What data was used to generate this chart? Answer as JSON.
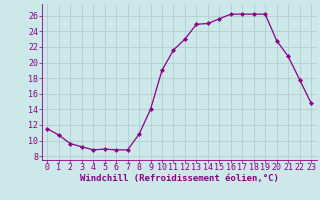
{
  "x": [
    0,
    1,
    2,
    3,
    4,
    5,
    6,
    7,
    8,
    9,
    10,
    11,
    12,
    13,
    14,
    15,
    16,
    17,
    18,
    19,
    20,
    21,
    22,
    23
  ],
  "y": [
    11.5,
    10.7,
    9.6,
    9.2,
    8.8,
    8.9,
    8.8,
    8.8,
    10.8,
    14.0,
    19.0,
    21.6,
    23.0,
    24.9,
    25.0,
    25.6,
    26.2,
    26.2,
    26.2,
    26.2,
    22.8,
    20.8,
    17.8,
    14.8
  ],
  "line_color": "#8b008b",
  "marker": "D",
  "marker_size": 2.0,
  "bg_color": "#cce8e8",
  "grid_color": "#aacaca",
  "xlabel": "Windchill (Refroidissement éolien,°C)",
  "xlim": [
    -0.5,
    23.5
  ],
  "ylim": [
    7.5,
    27.5
  ],
  "yticks": [
    8,
    10,
    12,
    14,
    16,
    18,
    20,
    22,
    24,
    26
  ],
  "xticks": [
    0,
    1,
    2,
    3,
    4,
    5,
    6,
    7,
    8,
    9,
    10,
    11,
    12,
    13,
    14,
    15,
    16,
    17,
    18,
    19,
    20,
    21,
    22,
    23
  ],
  "label_color": "#8b008b",
  "tick_color": "#8b008b",
  "axis_color": "#8b008b",
  "xlabel_fontsize": 6.5,
  "tick_fontsize": 6.0,
  "linewidth": 0.9
}
